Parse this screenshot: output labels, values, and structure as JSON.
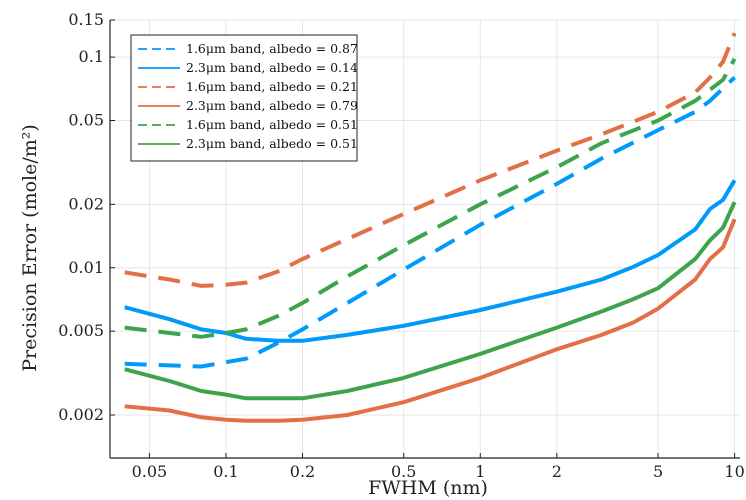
{
  "chart_data": {
    "type": "line",
    "title": "",
    "xlabel": "FWHM (nm)",
    "ylabel": "Precision Error (mole/m²)",
    "xscale": "log",
    "yscale": "log",
    "xlim": [
      0.035,
      10.5
    ],
    "ylim": [
      0.00125,
      0.15
    ],
    "xticks": [
      {
        "value": 0.05,
        "label": "0.05"
      },
      {
        "value": 0.1,
        "label": "0.1"
      },
      {
        "value": 0.2,
        "label": "0.2"
      },
      {
        "value": 0.5,
        "label": "0.5"
      },
      {
        "value": 1,
        "label": "1"
      },
      {
        "value": 2,
        "label": "2"
      },
      {
        "value": 5,
        "label": "5"
      },
      {
        "value": 10,
        "label": "10"
      }
    ],
    "yticks": [
      {
        "value": 0.002,
        "label": "0.002"
      },
      {
        "value": 0.005,
        "label": "0.005"
      },
      {
        "value": 0.01,
        "label": "0.01"
      },
      {
        "value": 0.02,
        "label": "0.02"
      },
      {
        "value": 0.05,
        "label": "0.05"
      },
      {
        "value": 0.1,
        "label": "0.1"
      },
      {
        "value": 0.15,
        "label": "0.15"
      }
    ],
    "grid": true,
    "legend_position": "top-left",
    "series": [
      {
        "name": "1.6μm band, albedo = 0.87",
        "color": "#009AFA",
        "dash": "dashed",
        "x": [
          0.04,
          0.08,
          0.12,
          0.16,
          0.2,
          0.3,
          0.5,
          1,
          2,
          3,
          5,
          7,
          8,
          9,
          10
        ],
        "y": [
          0.0035,
          0.0034,
          0.0037,
          0.0044,
          0.0051,
          0.0068,
          0.0098,
          0.016,
          0.025,
          0.033,
          0.045,
          0.055,
          0.062,
          0.071,
          0.08
        ]
      },
      {
        "name": "2.3μm band, albedo = 0.14",
        "color": "#009AFA",
        "dash": "solid",
        "x": [
          0.04,
          0.06,
          0.08,
          0.1,
          0.12,
          0.16,
          0.2,
          0.3,
          0.5,
          1,
          2,
          3,
          4,
          5,
          7,
          8,
          9,
          10
        ],
        "y": [
          0.0065,
          0.0057,
          0.0051,
          0.0049,
          0.0046,
          0.0045,
          0.0045,
          0.0048,
          0.0053,
          0.0063,
          0.0077,
          0.0088,
          0.0101,
          0.0115,
          0.0152,
          0.019,
          0.021,
          0.026
        ]
      },
      {
        "name": "1.6μm band, albedo = 0.21",
        "color": "#E26F46",
        "dash": "dashed",
        "x": [
          0.04,
          0.06,
          0.08,
          0.1,
          0.12,
          0.16,
          0.2,
          0.3,
          0.5,
          1,
          2,
          3,
          5,
          7,
          8,
          9,
          10
        ],
        "y": [
          0.0095,
          0.0088,
          0.0082,
          0.0083,
          0.0085,
          0.0096,
          0.011,
          0.0137,
          0.018,
          0.026,
          0.036,
          0.043,
          0.055,
          0.068,
          0.08,
          0.095,
          0.13
        ]
      },
      {
        "name": "2.3μm band, albedo = 0.79",
        "color": "#E26F46",
        "dash": "solid",
        "x": [
          0.04,
          0.06,
          0.08,
          0.1,
          0.12,
          0.16,
          0.2,
          0.3,
          0.5,
          1,
          2,
          3,
          4,
          5,
          7,
          8,
          9,
          10
        ],
        "y": [
          0.0022,
          0.0021,
          0.00195,
          0.0019,
          0.00188,
          0.00188,
          0.0019,
          0.002,
          0.0023,
          0.003,
          0.0041,
          0.0048,
          0.0055,
          0.0064,
          0.0088,
          0.011,
          0.0125,
          0.017
        ]
      },
      {
        "name": "1.6μm band, albedo = 0.51",
        "color": "#3DA44D",
        "dash": "dashed",
        "x": [
          0.04,
          0.06,
          0.08,
          0.1,
          0.12,
          0.16,
          0.2,
          0.3,
          0.5,
          1,
          2,
          3,
          5,
          7,
          8,
          9,
          10
        ],
        "y": [
          0.0052,
          0.0049,
          0.0047,
          0.0049,
          0.0051,
          0.0059,
          0.0068,
          0.0091,
          0.0128,
          0.02,
          0.03,
          0.039,
          0.05,
          0.062,
          0.07,
          0.078,
          0.098
        ]
      },
      {
        "name": "2.3μm band, albedo = 0.51",
        "color": "#3DA44D",
        "dash": "solid",
        "x": [
          0.04,
          0.06,
          0.08,
          0.1,
          0.12,
          0.16,
          0.2,
          0.3,
          0.5,
          1,
          2,
          3,
          4,
          5,
          7,
          8,
          9,
          10
        ],
        "y": [
          0.0033,
          0.0029,
          0.0026,
          0.0025,
          0.0024,
          0.0024,
          0.0024,
          0.0026,
          0.003,
          0.0039,
          0.0052,
          0.0062,
          0.0071,
          0.008,
          0.011,
          0.0135,
          0.0155,
          0.0205
        ]
      }
    ]
  }
}
